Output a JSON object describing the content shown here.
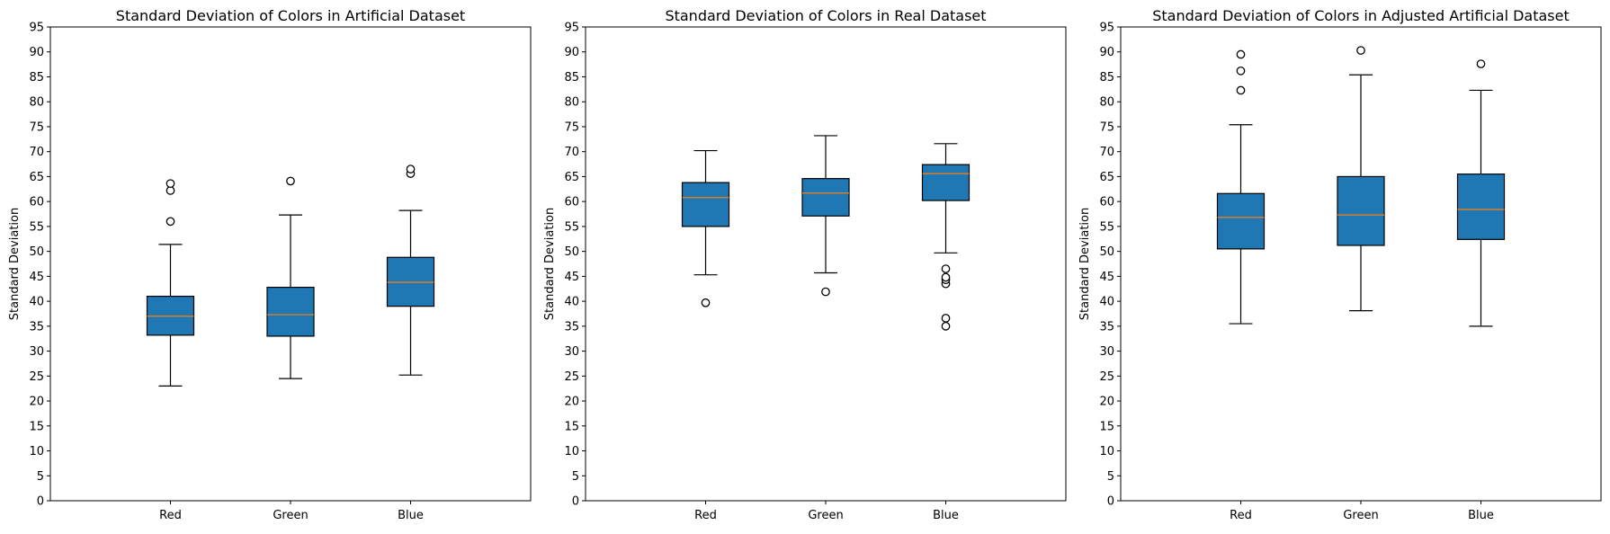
{
  "chart_data": [
    {
      "type": "box",
      "title": "Standard Deviation of Colors in Artificial Dataset",
      "xlabel": "",
      "ylabel": "Standard Deviation",
      "ylim": [
        0,
        95
      ],
      "yticks": [
        0,
        5,
        10,
        15,
        20,
        25,
        30,
        35,
        40,
        45,
        50,
        55,
        60,
        65,
        70,
        75,
        80,
        85,
        90,
        95
      ],
      "grid": false,
      "categories": [
        "Red",
        "Green",
        "Blue"
      ],
      "boxes": [
        {
          "category": "Red",
          "whisker_low": 23.0,
          "q1": 33.2,
          "median": 37.0,
          "q3": 41.0,
          "whisker_high": 51.4,
          "outliers": [
            56.0,
            62.2,
            63.6
          ]
        },
        {
          "category": "Green",
          "whisker_low": 24.5,
          "q1": 33.0,
          "median": 37.3,
          "q3": 42.8,
          "whisker_high": 57.3,
          "outliers": [
            64.1
          ]
        },
        {
          "category": "Blue",
          "whisker_low": 25.2,
          "q1": 39.0,
          "median": 43.8,
          "q3": 48.8,
          "whisker_high": 58.2,
          "outliers": [
            65.6,
            66.5
          ]
        }
      ]
    },
    {
      "type": "box",
      "title": "Standard Deviation of Colors in Real Dataset",
      "xlabel": "",
      "ylabel": "Standard Deviation",
      "ylim": [
        0,
        95
      ],
      "yticks": [
        0,
        5,
        10,
        15,
        20,
        25,
        30,
        35,
        40,
        45,
        50,
        55,
        60,
        65,
        70,
        75,
        80,
        85,
        90,
        95
      ],
      "grid": false,
      "categories": [
        "Red",
        "Green",
        "Blue"
      ],
      "boxes": [
        {
          "category": "Red",
          "whisker_low": 45.3,
          "q1": 55.0,
          "median": 60.8,
          "q3": 63.8,
          "whisker_high": 70.2,
          "outliers": [
            39.7
          ]
        },
        {
          "category": "Green",
          "whisker_low": 45.7,
          "q1": 57.1,
          "median": 61.7,
          "q3": 64.6,
          "whisker_high": 73.2,
          "outliers": [
            41.9
          ]
        },
        {
          "category": "Blue",
          "whisker_low": 49.7,
          "q1": 60.2,
          "median": 65.6,
          "q3": 67.4,
          "whisker_high": 71.6,
          "outliers": [
            35.0,
            36.6,
            43.5,
            44.3,
            44.8,
            46.5
          ]
        }
      ]
    },
    {
      "type": "box",
      "title": "Standard Deviation of Colors in Adjusted Artificial Dataset",
      "xlabel": "",
      "ylabel": "Standard Deviation",
      "ylim": [
        0,
        95
      ],
      "yticks": [
        0,
        5,
        10,
        15,
        20,
        25,
        30,
        35,
        40,
        45,
        50,
        55,
        60,
        65,
        70,
        75,
        80,
        85,
        90,
        95
      ],
      "grid": false,
      "categories": [
        "Red",
        "Green",
        "Blue"
      ],
      "boxes": [
        {
          "category": "Red",
          "whisker_low": 35.5,
          "q1": 50.5,
          "median": 56.8,
          "q3": 61.6,
          "whisker_high": 75.4,
          "outliers": [
            82.3,
            86.2,
            89.5
          ]
        },
        {
          "category": "Green",
          "whisker_low": 38.1,
          "q1": 51.2,
          "median": 57.3,
          "q3": 65.0,
          "whisker_high": 85.4,
          "outliers": [
            90.3
          ]
        },
        {
          "category": "Blue",
          "whisker_low": 35.0,
          "q1": 52.4,
          "median": 58.4,
          "q3": 65.5,
          "whisker_high": 82.3,
          "outliers": [
            87.6
          ]
        }
      ]
    }
  ],
  "style": {
    "box_fill": "#1f77b4",
    "median_color": "#ff7f0e",
    "line_color": "#000000",
    "outlier_face": "#ffffff"
  }
}
